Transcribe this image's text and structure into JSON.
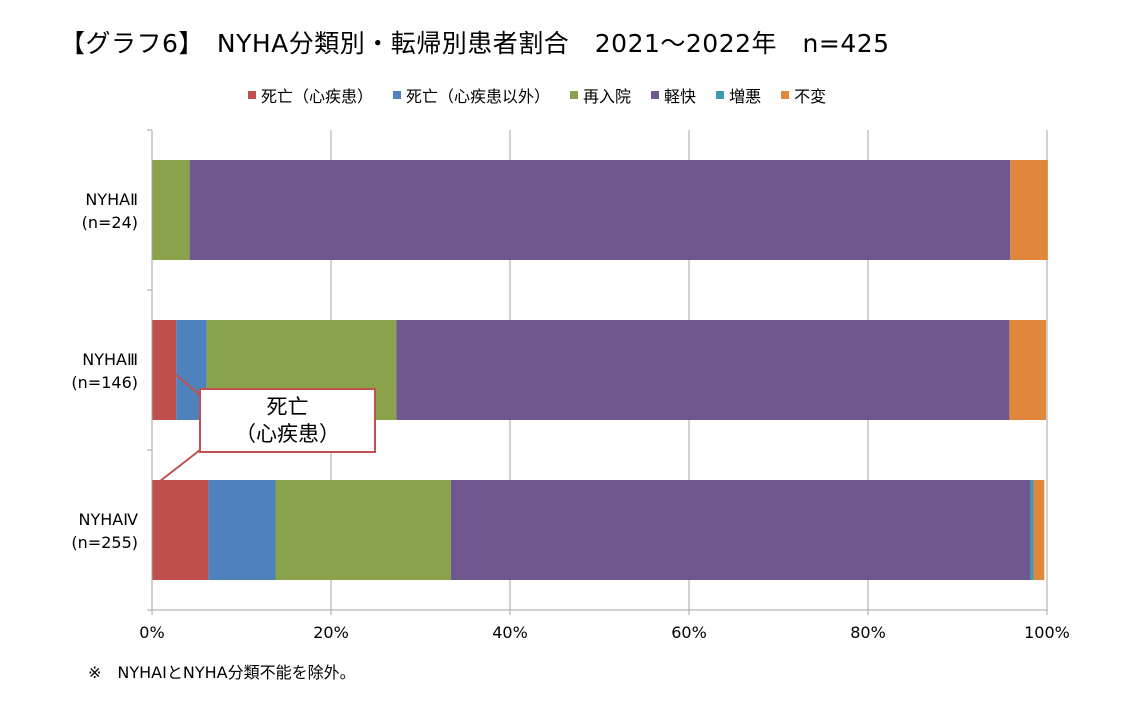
{
  "title": "【グラフ6】　NYHA分類別・転帰別患者割合　2021～2022年　n=425",
  "footnote": "※　NYHAⅠとNYHA分類不能を除外。",
  "chart_data": {
    "type": "bar",
    "orientation": "horizontal",
    "stacked": "percent",
    "categories": [
      {
        "label": "NYHAⅡ",
        "n": "(n=24)"
      },
      {
        "label": "NYHAⅢ",
        "n": "(n=146)"
      },
      {
        "label": "NYHAⅣ",
        "n": "(n=255)"
      }
    ],
    "series": [
      {
        "name": "死亡（心疾患）",
        "color": "#c0504d",
        "values": [
          0,
          2.7,
          6.3
        ]
      },
      {
        "name": "死亡（心疾患以外）",
        "color": "#4f81bd",
        "values": [
          0,
          3.4,
          7.5
        ]
      },
      {
        "name": "再入院",
        "color": "#8aa34b",
        "values": [
          4.2,
          21.2,
          19.6
        ]
      },
      {
        "name": "軽快",
        "color": "#6f5790",
        "values": [
          91.7,
          68.5,
          64.7
        ]
      },
      {
        "name": "増悪",
        "color": "#3f97b0",
        "values": [
          0,
          0,
          0.4
        ]
      },
      {
        "name": "不変",
        "color": "#e0873c",
        "values": [
          4.2,
          4.1,
          1.2
        ]
      }
    ],
    "xlim": [
      0,
      100
    ],
    "xticks": [
      "0%",
      "20%",
      "40%",
      "60%",
      "80%",
      "100%"
    ],
    "grid": true,
    "legend_position": "top",
    "annotation": {
      "line1": "死亡",
      "line2": "（心疾患）",
      "color": "#c0504d"
    }
  }
}
